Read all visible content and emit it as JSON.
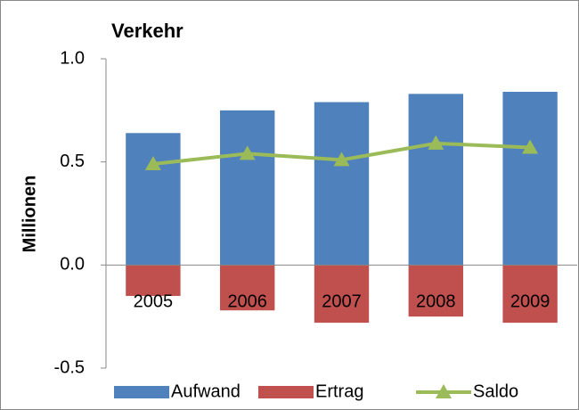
{
  "chart_data": {
    "type": "bar",
    "title": "Verkehr",
    "y_label": "Millionen",
    "categories": [
      "2005",
      "2006",
      "2007",
      "2008",
      "2009"
    ],
    "series": [
      {
        "name": "Aufwand",
        "color": "#4f81bd",
        "type": "bar",
        "values": [
          0.64,
          0.75,
          0.79,
          0.83,
          0.84
        ]
      },
      {
        "name": "Ertrag",
        "color": "#c0504d",
        "type": "bar",
        "values": [
          -0.15,
          -0.22,
          -0.28,
          -0.25,
          -0.28
        ]
      },
      {
        "name": "Saldo",
        "color": "#9bbb59",
        "type": "line",
        "values": [
          0.49,
          0.54,
          0.51,
          0.59,
          0.57
        ]
      }
    ],
    "ylim": [
      -0.5,
      1.0
    ],
    "yticks": [
      {
        "value": 1.0,
        "label": "1.0"
      },
      0.5,
      {
        "value": 0.0,
        "label": "0.0"
      },
      -0.5
    ],
    "grid": false,
    "legend": "bottom"
  }
}
